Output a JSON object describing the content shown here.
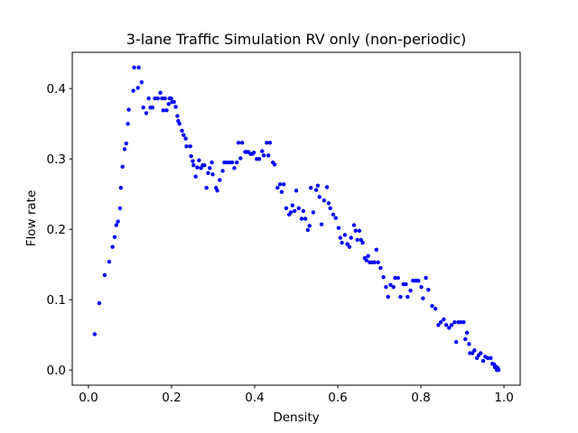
{
  "chart_data": {
    "type": "scatter",
    "title": "3-lane Traffic Simulation RV only (non-periodic)",
    "x_label": "Density",
    "y_label": "Flow rate",
    "color": "#0000ff",
    "xlim": [
      -0.039,
      1.039
    ],
    "ylim": [
      -0.0215,
      0.4515
    ],
    "xticks": [
      {
        "value": 0,
        "label": "0.0"
      },
      {
        "value": 0.2,
        "label": "0.2"
      },
      {
        "value": 0.4,
        "label": "0.4"
      },
      {
        "value": 0.6,
        "label": "0.6"
      },
      {
        "value": 0.8,
        "label": "0.8"
      },
      {
        "value": 1,
        "label": "1.0"
      }
    ],
    "yticks": [
      {
        "value": 0,
        "label": "0.0"
      },
      {
        "value": 0.1,
        "label": "0.1"
      },
      {
        "value": 0.2,
        "label": "0.2"
      },
      {
        "value": 0.3,
        "label": "0.3"
      },
      {
        "value": 0.4,
        "label": "0.4"
      }
    ],
    "x": [
      0.015,
      0.026,
      0.039,
      0.05,
      0.058,
      0.063,
      0.067,
      0.071,
      0.076,
      0.078,
      0.082,
      0.087,
      0.091,
      0.095,
      0.097,
      0.108,
      0.11,
      0.119,
      0.121,
      0.128,
      0.132,
      0.139,
      0.145,
      0.149,
      0.154,
      0.16,
      0.167,
      0.173,
      0.177,
      0.18,
      0.184,
      0.188,
      0.193,
      0.195,
      0.199,
      0.201,
      0.206,
      0.21,
      0.214,
      0.216,
      0.219,
      0.225,
      0.229,
      0.234,
      0.236,
      0.245,
      0.247,
      0.251,
      0.253,
      0.258,
      0.262,
      0.266,
      0.271,
      0.275,
      0.279,
      0.284,
      0.288,
      0.292,
      0.297,
      0.299,
      0.307,
      0.31,
      0.316,
      0.323,
      0.327,
      0.333,
      0.34,
      0.346,
      0.351,
      0.357,
      0.361,
      0.366,
      0.37,
      0.377,
      0.381,
      0.385,
      0.39,
      0.394,
      0.398,
      0.405,
      0.411,
      0.418,
      0.422,
      0.429,
      0.433,
      0.437,
      0.444,
      0.448,
      0.455,
      0.461,
      0.465,
      0.47,
      0.476,
      0.483,
      0.487,
      0.491,
      0.496,
      0.5,
      0.506,
      0.513,
      0.517,
      0.522,
      0.528,
      0.532,
      0.535,
      0.541,
      0.548,
      0.552,
      0.556,
      0.561,
      0.567,
      0.574,
      0.578,
      0.582,
      0.589,
      0.595,
      0.602,
      0.606,
      0.61,
      0.617,
      0.623,
      0.628,
      0.632,
      0.639,
      0.643,
      0.647,
      0.652,
      0.656,
      0.66,
      0.665,
      0.669,
      0.673,
      0.677,
      0.682,
      0.688,
      0.693,
      0.697,
      0.703,
      0.71,
      0.716,
      0.721,
      0.727,
      0.734,
      0.738,
      0.745,
      0.751,
      0.758,
      0.764,
      0.768,
      0.775,
      0.781,
      0.788,
      0.794,
      0.801,
      0.805,
      0.812,
      0.818,
      0.827,
      0.835,
      0.842,
      0.848,
      0.855,
      0.861,
      0.868,
      0.874,
      0.881,
      0.885,
      0.89,
      0.896,
      0.903,
      0.907,
      0.911,
      0.916,
      0.918,
      0.924,
      0.929,
      0.935,
      0.939,
      0.944,
      0.95,
      0.955,
      0.961,
      0.968,
      0.972,
      0.976,
      0.978,
      0.98,
      0.983,
      0.985,
      0.987
    ],
    "values": [
      0.051,
      0.095,
      0.135,
      0.154,
      0.175,
      0.189,
      0.206,
      0.211,
      0.23,
      0.259,
      0.289,
      0.314,
      0.322,
      0.35,
      0.37,
      0.397,
      0.43,
      0.401,
      0.43,
      0.409,
      0.373,
      0.365,
      0.386,
      0.373,
      0.373,
      0.386,
      0.386,
      0.394,
      0.386,
      0.369,
      0.386,
      0.369,
      0.378,
      0.386,
      0.386,
      0.381,
      0.381,
      0.374,
      0.361,
      0.354,
      0.35,
      0.34,
      0.334,
      0.329,
      0.318,
      0.318,
      0.304,
      0.297,
      0.291,
      0.275,
      0.288,
      0.298,
      0.287,
      0.291,
      0.291,
      0.259,
      0.28,
      0.287,
      0.295,
      0.278,
      0.259,
      0.255,
      0.27,
      0.283,
      0.295,
      0.295,
      0.295,
      0.295,
      0.287,
      0.295,
      0.323,
      0.301,
      0.323,
      0.31,
      0.31,
      0.31,
      0.307,
      0.307,
      0.309,
      0.3,
      0.3,
      0.311,
      0.305,
      0.323,
      0.305,
      0.323,
      0.295,
      0.292,
      0.259,
      0.264,
      0.253,
      0.264,
      0.23,
      0.221,
      0.224,
      0.234,
      0.226,
      0.255,
      0.23,
      0.215,
      0.226,
      0.215,
      0.199,
      0.205,
      0.259,
      0.224,
      0.256,
      0.262,
      0.246,
      0.207,
      0.241,
      0.26,
      0.237,
      0.23,
      0.221,
      0.216,
      0.202,
      0.188,
      0.181,
      0.192,
      0.179,
      0.175,
      0.188,
      0.206,
      0.198,
      0.185,
      0.198,
      0.185,
      0.181,
      0.159,
      0.156,
      0.162,
      0.153,
      0.153,
      0.153,
      0.171,
      0.153,
      0.145,
      0.132,
      0.118,
      0.104,
      0.121,
      0.118,
      0.131,
      0.131,
      0.104,
      0.122,
      0.122,
      0.104,
      0.113,
      0.127,
      0.127,
      0.127,
      0.118,
      0.102,
      0.131,
      0.114,
      0.091,
      0.087,
      0.064,
      0.068,
      0.072,
      0.064,
      0.06,
      0.064,
      0.068,
      0.04,
      0.068,
      0.068,
      0.068,
      0.044,
      0.053,
      0.037,
      0.024,
      0.024,
      0.028,
      0.017,
      0.021,
      0.024,
      0.013,
      0.019,
      0.017,
      0.017,
      0.009,
      0.008,
      0.004,
      0.005,
      0,
      0.003,
      0
    ]
  }
}
